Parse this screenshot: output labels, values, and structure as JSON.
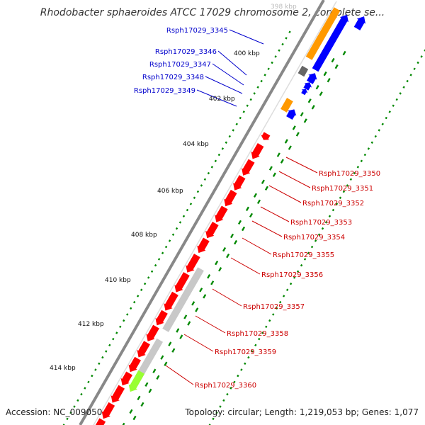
{
  "title": "Rhodobacter sphaeroides ATCC 17029 chromosome 2, complete se...",
  "footer": {
    "accession": "Accession: NC_009050",
    "summary": "Topology: circular; Length: 1,219,053 bp; Genes: 1,077"
  },
  "colors": {
    "forward_gene": "#0000ff",
    "reverse_gene": "#ff0000",
    "forward_label": "#0000cc",
    "reverse_label": "#cc0000",
    "orange_gene": "#ff9900",
    "dark_gray_gene": "#666666",
    "light_gray_gene": "#c8c8c8",
    "lime_gene": "#99ff33",
    "backbone": "#888888",
    "tick_dot": "#008800"
  },
  "ticks": [
    {
      "label": "398 kbp",
      "faint": true
    },
    {
      "label": "400 kbp"
    },
    {
      "label": "402 kbp"
    },
    {
      "label": "404 kbp"
    },
    {
      "label": "406 kbp"
    },
    {
      "label": "408 kbp"
    },
    {
      "label": "410 kbp"
    },
    {
      "label": "412 kbp"
    },
    {
      "label": "414 kbp"
    }
  ],
  "forward_labels": [
    "Rsph17029_3345",
    "Rsph17029_3346",
    "Rsph17029_3347",
    "Rsph17029_3348",
    "Rsph17029_3349"
  ],
  "reverse_labels": [
    "Rsph17029_3350",
    "Rsph17029_3351",
    "Rsph17029_3352",
    "Rsph17029_3353",
    "Rsph17029_3354",
    "Rsph17029_3355",
    "Rsph17029_3356",
    "Rsph17029_3357",
    "Rsph17029_3358",
    "Rsph17029_3359",
    "Rsph17029_3360"
  ]
}
